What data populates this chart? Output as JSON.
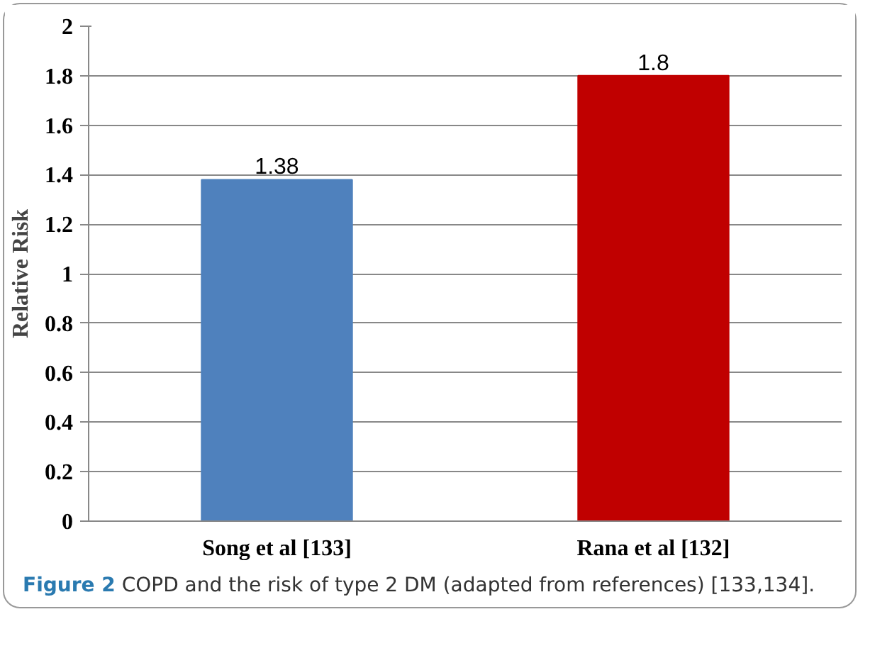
{
  "chart_data": {
    "type": "bar",
    "ylabel": "Relative Risk",
    "categories": [
      "Song et al [133]",
      "Rana et al [132]"
    ],
    "values": [
      1.38,
      1.8
    ],
    "colors": [
      "#4f81bd",
      "#c00000"
    ],
    "ylim": [
      0,
      2
    ],
    "yticks": [
      0,
      0.2,
      0.4,
      0.6,
      0.8,
      1,
      1.2,
      1.4,
      1.6,
      1.8,
      2
    ],
    "grid": "y",
    "data_labels": true,
    "annotations": [
      "Figure 2 COPD and the risk of type 2 DM (adapted from references) [133,134]."
    ]
  }
}
